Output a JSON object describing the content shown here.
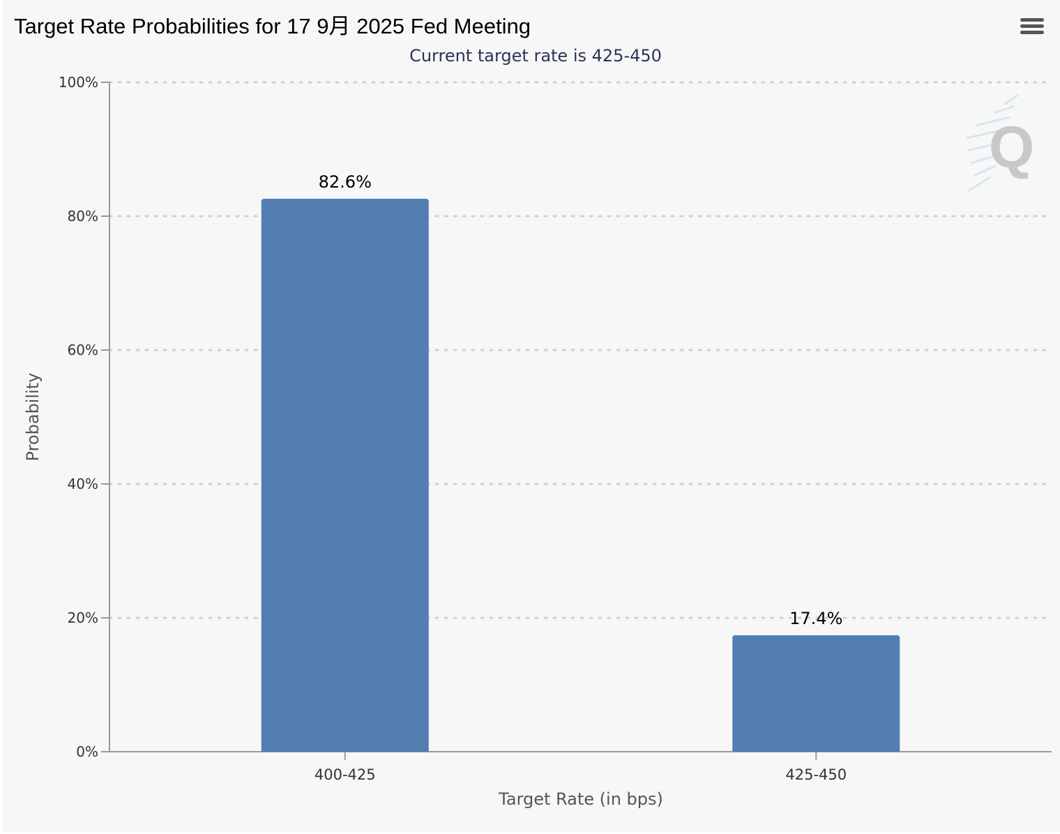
{
  "title": "Target Rate Probabilities for 17 9月 2025 Fed Meeting",
  "menu_icon": "hamburger-menu-icon",
  "logo_icon": "q-logo-icon",
  "colors": {
    "bar": "#537eb2",
    "background": "#f7f7f7",
    "grid": "#d0d0d0"
  },
  "chart_data": {
    "type": "bar",
    "title": "Target Rate Probabilities for 17 9月 2025 Fed Meeting",
    "subtitle": "Current target rate is 425-450",
    "xlabel": "Target Rate (in bps)",
    "ylabel": "Probability",
    "categories": [
      "400-425",
      "425-450"
    ],
    "values": [
      82.6,
      17.4
    ],
    "data_labels": [
      "82.6%",
      "17.4%"
    ],
    "ylim": [
      0,
      100
    ],
    "yticks": [
      0,
      20,
      40,
      60,
      80,
      100
    ],
    "ytick_labels": [
      "0%",
      "20%",
      "40%",
      "60%",
      "80%",
      "100%"
    ],
    "grid": true,
    "legend": "none"
  }
}
